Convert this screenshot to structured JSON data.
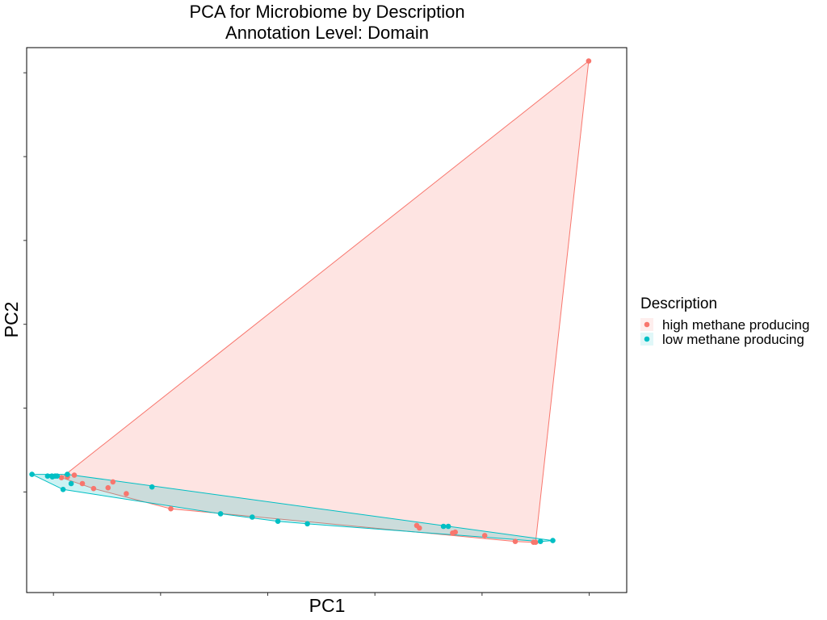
{
  "chart_data": {
    "type": "scatter",
    "title": "PCA for Microbiome by Description",
    "subtitle": "Annotation Level: Domain",
    "xlabel": "PC1",
    "ylabel": "PC2",
    "xlim": [
      -0.5,
      10.7
    ],
    "ylim": [
      -1.2,
      5.3
    ],
    "grid": false,
    "legend": {
      "title": "Description",
      "position": "right"
    },
    "series": [
      {
        "name": "high methane producing",
        "color": "#F8766D",
        "points": [
          {
            "x": 9.99,
            "y": 5.14
          },
          {
            "x": 0.26,
            "y": 0.18
          },
          {
            "x": 0.39,
            "y": 0.2
          },
          {
            "x": 0.15,
            "y": 0.17
          },
          {
            "x": 0.54,
            "y": 0.1
          },
          {
            "x": 0.75,
            "y": 0.04
          },
          {
            "x": 1.02,
            "y": 0.05
          },
          {
            "x": 1.11,
            "y": 0.12
          },
          {
            "x": 1.36,
            "y": -0.02
          },
          {
            "x": 2.19,
            "y": -0.2
          },
          {
            "x": 6.78,
            "y": -0.4
          },
          {
            "x": 6.83,
            "y": -0.43
          },
          {
            "x": 7.45,
            "y": -0.49
          },
          {
            "x": 7.5,
            "y": -0.48
          },
          {
            "x": 8.05,
            "y": -0.52
          },
          {
            "x": 8.62,
            "y": -0.59
          },
          {
            "x": 8.96,
            "y": -0.6
          },
          {
            "x": 9.0,
            "y": -0.6
          }
        ]
      },
      {
        "name": "low methane producing",
        "color": "#00BFC4",
        "points": [
          {
            "x": -0.4,
            "y": 0.21
          },
          {
            "x": -0.11,
            "y": 0.19
          },
          {
            "x": -0.03,
            "y": 0.19
          },
          {
            "x": 0.03,
            "y": 0.19
          },
          {
            "x": -0.02,
            "y": 0.18
          },
          {
            "x": 0.07,
            "y": 0.19
          },
          {
            "x": 0.26,
            "y": 0.21
          },
          {
            "x": 0.33,
            "y": 0.1
          },
          {
            "x": 0.18,
            "y": 0.03
          },
          {
            "x": 1.84,
            "y": 0.06
          },
          {
            "x": 3.12,
            "y": -0.26
          },
          {
            "x": 3.71,
            "y": -0.3
          },
          {
            "x": 4.19,
            "y": -0.35
          },
          {
            "x": 4.74,
            "y": -0.38
          },
          {
            "x": 7.28,
            "y": -0.41
          },
          {
            "x": 7.37,
            "y": -0.41
          },
          {
            "x": 9.09,
            "y": -0.59
          },
          {
            "x": 9.32,
            "y": -0.58
          }
        ]
      }
    ]
  }
}
